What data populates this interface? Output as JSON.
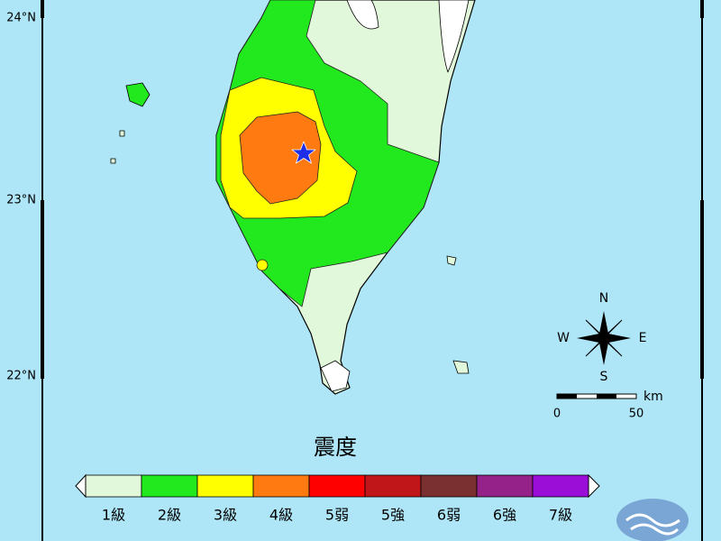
{
  "map": {
    "lat_labels": [
      "24°N",
      "23°N",
      "22°N"
    ]
  },
  "compass": {
    "n": "N",
    "w": "W",
    "e": "E",
    "s": "S"
  },
  "scale_bar": {
    "unit": "km",
    "labels": [
      "0",
      "50"
    ]
  },
  "legend": {
    "title": "震度",
    "classes": [
      {
        "label": "1級",
        "color": "#e2f8da"
      },
      {
        "label": "2級",
        "color": "#22e81e"
      },
      {
        "label": "3級",
        "color": "#ffff00"
      },
      {
        "label": "4級",
        "color": "#ff7a10"
      },
      {
        "label": "5弱",
        "color": "#ff0000"
      },
      {
        "label": "5強",
        "color": "#c0161a"
      },
      {
        "label": "6弱",
        "color": "#7a3030"
      },
      {
        "label": "6強",
        "color": "#942288"
      },
      {
        "label": "7級",
        "color": "#9a0ed8"
      }
    ]
  }
}
